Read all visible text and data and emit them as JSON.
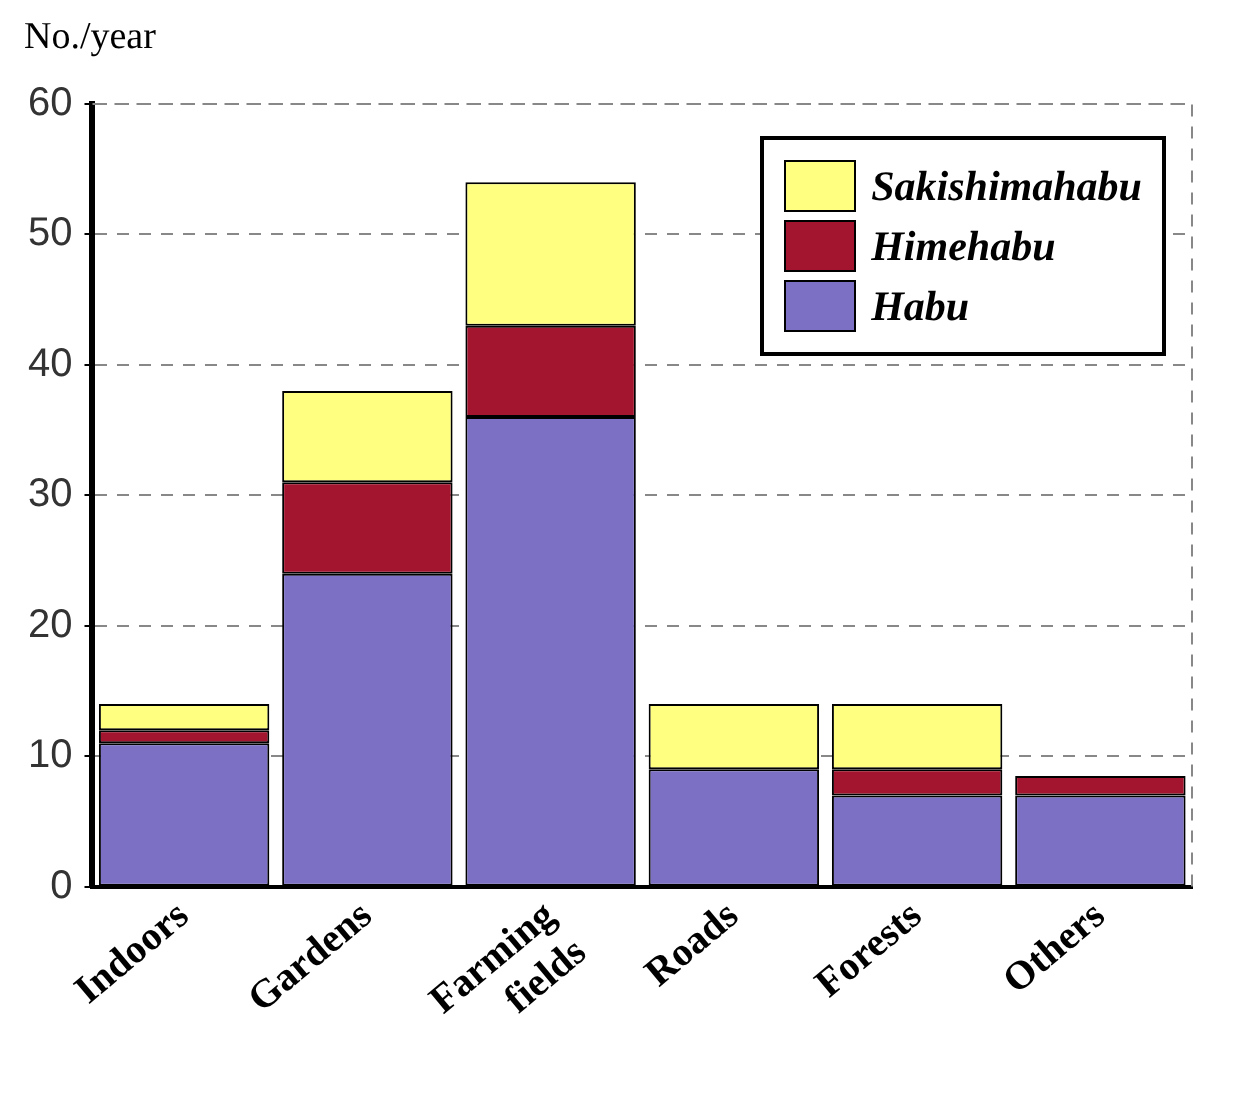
{
  "chart_data": {
    "type": "bar",
    "ylabel": "No./year",
    "categories": [
      "Indoors",
      "Gardens",
      "Farming fields",
      "Roads",
      "Forests",
      "Others"
    ],
    "stacked": true,
    "ylim": [
      0,
      60
    ],
    "yticks": [
      0,
      10,
      20,
      30,
      40,
      50,
      60
    ],
    "grid": "y",
    "legend": "top right",
    "series": [
      {
        "name": "Habu",
        "color": "#7b70c4",
        "values": [
          11,
          24,
          36,
          9,
          7,
          7
        ]
      },
      {
        "name": "Himehabu",
        "color": "#a3142e",
        "values": [
          1,
          7,
          7,
          0,
          2,
          1.5
        ]
      },
      {
        "name": "Sakishimahabu",
        "color": "#ffff80",
        "values": [
          2,
          7,
          11,
          5,
          5,
          0
        ]
      }
    ]
  }
}
